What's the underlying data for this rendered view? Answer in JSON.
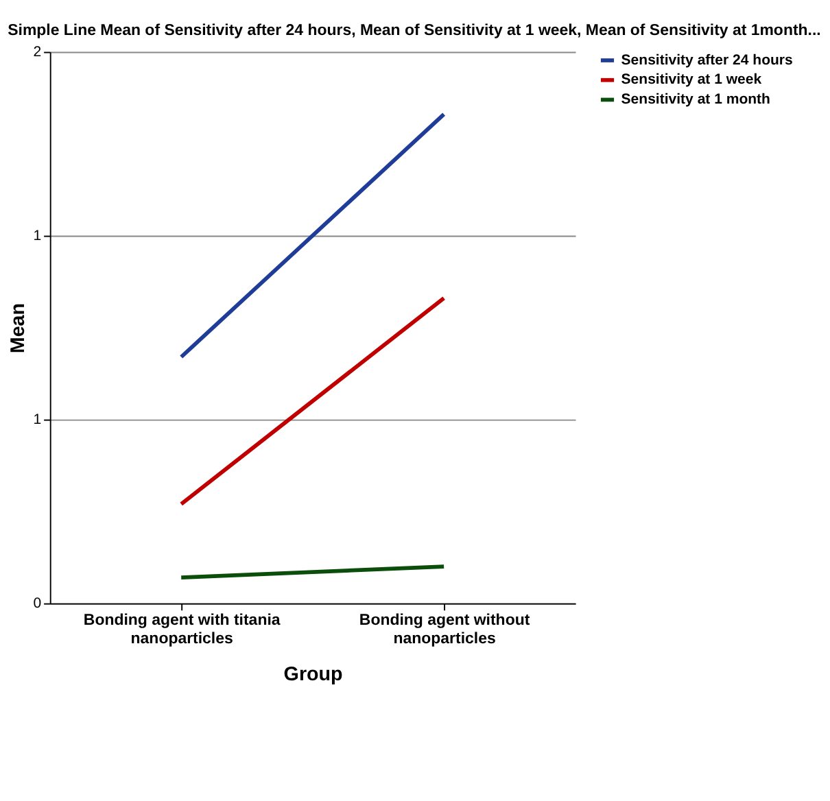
{
  "chart_data": {
    "type": "line",
    "title": "Simple Line Mean of Sensitivity after 24 hours, Mean of Sensitivity at 1 week, Mean of Sensitivity at 1month...",
    "xlabel": "Group",
    "ylabel": "Mean",
    "categories": [
      "Bonding agent with titania nanoparticles",
      "Bonding agent without nanoparticles"
    ],
    "series": [
      {
        "name": "Sensitivity after 24 hours",
        "color": "#1f3c99",
        "values": [
          0.67,
          1.33
        ]
      },
      {
        "name": "Sensitivity at 1 week",
        "color": "#c00000",
        "values": [
          0.27,
          0.83
        ]
      },
      {
        "name": "Sensitivity at 1 month",
        "color": "#0b4d0b",
        "values": [
          0.07,
          0.1
        ]
      }
    ],
    "ylim": [
      0,
      1.5
    ],
    "yticks": [
      0,
      {
        "value": 0.5,
        "label": "1"
      },
      {
        "value": 1,
        "label": "1"
      },
      {
        "value": 1.5,
        "label": "2"
      }
    ],
    "grid": "y",
    "legend": "top right",
    "marker": "none",
    "line_style": "solid"
  }
}
